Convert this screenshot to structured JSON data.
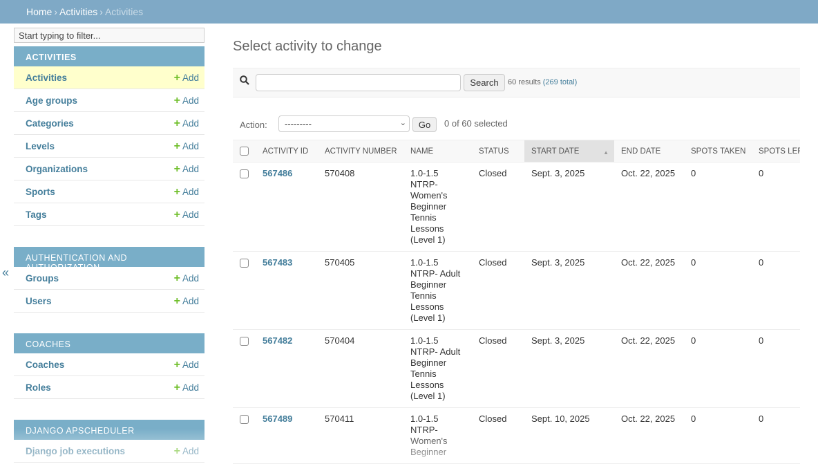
{
  "breadcrumbs": [
    "Home",
    "Activities",
    "Activities"
  ],
  "sidebar": {
    "filter_placeholder": "Start typing to filter...",
    "collapse_icon": "«",
    "sections": [
      {
        "title": "ACTIVITIES",
        "items": [
          "Activities",
          "Age groups",
          "Categories",
          "Levels",
          "Organizations",
          "Sports",
          "Tags"
        ]
      },
      {
        "title": "AUTHENTICATION AND AUTHORIZATION",
        "items": [
          "Groups",
          "Users"
        ]
      },
      {
        "title": "COACHES",
        "items": [
          "Coaches",
          "Roles"
        ]
      },
      {
        "title": "DJANGO APSCHEDULER",
        "items": [
          "Django job executions"
        ]
      }
    ],
    "add_label": "Add"
  },
  "main": {
    "title": "Select activity to change",
    "search_button": "Search",
    "results": "60 results",
    "total": "(269 total)",
    "action_label": "Action:",
    "action_value": "---------",
    "go_button": "Go",
    "selected": "0 of 60 selected",
    "columns": [
      "ACTIVITY ID",
      "ACTIVITY NUMBER",
      "NAME",
      "STATUS",
      "START DATE",
      "END DATE",
      "SPOTS TAKEN",
      "SPOTS LEFT"
    ],
    "rows": [
      [
        "567486",
        "570408",
        "1.0-1.5 NTRP-Women's Beginner Tennis Lessons (Level 1)",
        "Closed",
        "Sept. 3, 2025",
        "Oct. 22, 2025",
        "0",
        "0"
      ],
      [
        "567483",
        "570405",
        "1.0-1.5 NTRP- Adult Beginner Tennis Lessons (Level 1)",
        "Closed",
        "Sept. 3, 2025",
        "Oct. 22, 2025",
        "0",
        "0"
      ],
      [
        "567482",
        "570404",
        "1.0-1.5 NTRP- Adult Beginner Tennis Lessons (Level 1)",
        "Closed",
        "Sept. 3, 2025",
        "Oct. 22, 2025",
        "0",
        "0"
      ],
      [
        "567489",
        "570411",
        "1.0-1.5 NTRP-Women's Beginner",
        "Closed",
        "Sept. 10, 2025",
        "Oct. 22, 2025",
        "0",
        "0"
      ]
    ]
  },
  "colors": {
    "header": "#7fa9c6",
    "link": "#447e9b",
    "add_plus": "#70bf2b",
    "selected_row": "#ffffcc"
  }
}
